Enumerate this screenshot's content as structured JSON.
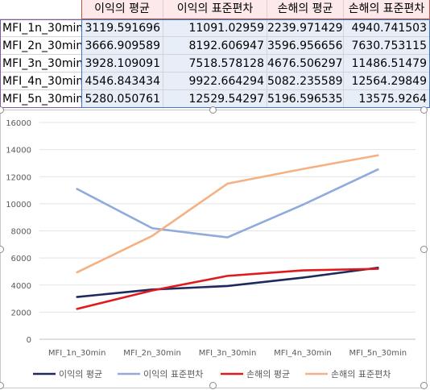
{
  "sheet": {
    "headers": [
      "이익의 평균",
      "이익의 표준편차",
      "손해의 평균",
      "손해의 표준편차"
    ],
    "rows": [
      {
        "label": "MFI_1n_30min",
        "values": [
          "3119.591696",
          "11091.02959",
          "2239.971429",
          "4940.741503"
        ]
      },
      {
        "label": "MFI_2n_30min",
        "values": [
          "3666.909589",
          "8192.606947",
          "3596.956656",
          "7630.753115"
        ]
      },
      {
        "label": "MFI_3n_30min",
        "values": [
          "3928.109091",
          "7518.578128",
          "4676.506297",
          "11486.51479"
        ]
      },
      {
        "label": "MFI_4n_30min",
        "values": [
          "4546.843434",
          "9922.664294",
          "5082.235589",
          "12564.29849"
        ]
      },
      {
        "label": "MFI_5n_30min",
        "values": [
          "5280.050761",
          "12529.54297",
          "5196.596535",
          "13575.9264"
        ]
      }
    ]
  },
  "chart_data": {
    "type": "line",
    "x": [
      "MFI_1n_30min",
      "MFI_2n_30min",
      "MFI_3n_30min",
      "MFI_4n_30min",
      "MFI_5n_30min"
    ],
    "series": [
      {
        "name": "이익의 평균",
        "color": "#1f2a5c",
        "values": [
          3119.591696,
          3666.909589,
          3928.109091,
          4546.843434,
          5280.050761
        ]
      },
      {
        "name": "이익의 표준편차",
        "color": "#8faadc",
        "values": [
          11091.02959,
          8192.606947,
          7518.578128,
          9922.664294,
          12529.54297
        ]
      },
      {
        "name": "손해의 평균",
        "color": "#e0191e",
        "values": [
          2239.971429,
          3596.956656,
          4676.506297,
          5082.235589,
          5196.596535
        ]
      },
      {
        "name": "손해의 표준편차",
        "color": "#f4b183",
        "values": [
          4940.741503,
          7630.753115,
          11486.51479,
          12564.29849,
          13575.9264
        ]
      }
    ],
    "yticks": [
      "0",
      "2000",
      "4000",
      "6000",
      "8000",
      "10000",
      "12000",
      "14000",
      "16000"
    ],
    "ylim": [
      0,
      16000
    ],
    "grid": true,
    "legend": "bottom",
    "title": "",
    "xlabel": "",
    "ylabel": ""
  }
}
